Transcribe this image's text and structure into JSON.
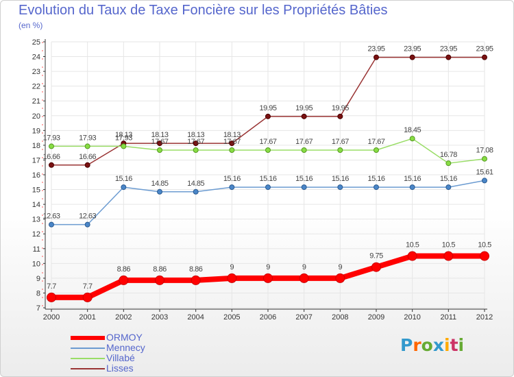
{
  "chart_data": {
    "type": "line",
    "title": "Evolution du Taux de Taxe Foncière sur les Propriétés Bâties",
    "unit_label": "(en %)",
    "x": [
      "2000",
      "2001",
      "2002",
      "2003",
      "2004",
      "2005",
      "2006",
      "2007",
      "2008",
      "2009",
      "2010",
      "2011",
      "2012"
    ],
    "y_ticks": [
      "7",
      "8",
      "9",
      "10",
      "11",
      "12",
      "13",
      "14",
      "15",
      "16",
      "17",
      "18",
      "19",
      "20",
      "21",
      "22",
      "23",
      "24",
      "25"
    ],
    "ylim": [
      7,
      25
    ],
    "series": [
      {
        "name": "ORMOY",
        "color": "#ff0000",
        "values": [
          7.7,
          7.7,
          8.86,
          8.86,
          8.86,
          9,
          9,
          9,
          9,
          9.75,
          10.5,
          10.5,
          10.5
        ],
        "labels": [
          "7.7",
          "7.7",
          "8.86",
          "8.86",
          "8.86",
          "9",
          "9",
          "9",
          "9",
          "9.75",
          "10.5",
          "10.5",
          "10.5"
        ]
      },
      {
        "name": "Mennecy",
        "color": "#6b9bd1",
        "values": [
          12.63,
          12.63,
          15.16,
          14.85,
          14.85,
          15.16,
          15.16,
          15.16,
          15.16,
          15.16,
          15.16,
          15.16,
          15.61
        ],
        "labels": [
          "12.63",
          "12.63",
          "15.16",
          "14.85",
          "14.85",
          "15.16",
          "15.16",
          "15.16",
          "15.16",
          "15.16",
          "15.16",
          "15.16",
          "15.61"
        ]
      },
      {
        "name": "Villabé",
        "color": "#99dd66",
        "values": [
          17.93,
          17.93,
          17.93,
          17.67,
          17.67,
          17.67,
          17.67,
          17.67,
          17.67,
          17.67,
          18.45,
          16.78,
          17.08
        ],
        "labels": [
          "17.93",
          "17.93",
          "17.93",
          "17.67",
          "17.67",
          "17.67",
          "17.67",
          "17.67",
          "17.67",
          "17.67",
          "18.45",
          "16.78",
          "17.08"
        ]
      },
      {
        "name": "Lisses",
        "color": "#993333",
        "values": [
          16.66,
          16.66,
          18.13,
          18.13,
          18.13,
          18.13,
          19.95,
          19.95,
          19.95,
          23.95,
          23.95,
          23.95,
          23.95
        ],
        "labels": [
          "16.66",
          "16.66",
          "18.13",
          "18.13",
          "18.13",
          "18.13",
          "19.95",
          "19.95",
          "19.95",
          "23.95",
          "23.95",
          "23.95",
          "23.95"
        ]
      }
    ],
    "grid": true,
    "legend": "bottom-left"
  },
  "brand": {
    "letters": [
      "P",
      "r",
      "o",
      "x",
      "i",
      "t",
      "i"
    ],
    "colors": [
      "#3399cc",
      "#ff6600",
      "#66aa33",
      "#3399cc",
      "#ffaa00",
      "#cc3366",
      "#66aa33"
    ]
  }
}
